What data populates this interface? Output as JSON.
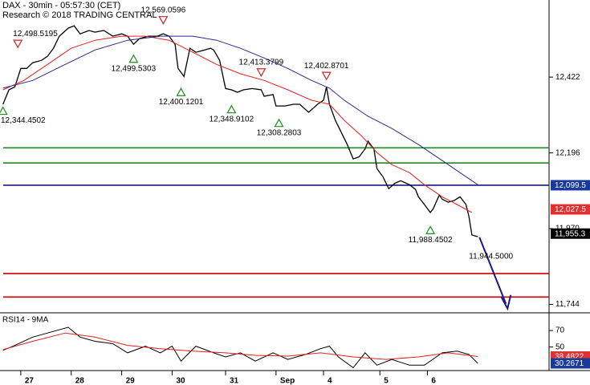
{
  "chart_data": [
    {
      "type": "line",
      "title": "DAX - 30min - 05:57:30 (CET)",
      "subtitle": "Research © 2018 TRADING CENTRAL",
      "xlim": [
        0,
        185
      ],
      "ylim": [
        11719,
        12652
      ],
      "yticks": [
        {
          "value": 12422,
          "label": "12,422"
        },
        {
          "value": 12196,
          "label": "12,196"
        },
        {
          "value": 11970,
          "label": "11,970"
        },
        {
          "value": 11744,
          "label": "11,744"
        }
      ],
      "series": [
        {
          "color": "#000000",
          "width": 1.3,
          "x": [
            1,
            3,
            5,
            7,
            9,
            11,
            14,
            16,
            18,
            20,
            23,
            25,
            27,
            30,
            32,
            35,
            38,
            41,
            43,
            45,
            47,
            50,
            53,
            55,
            57,
            59,
            60,
            62,
            64,
            66,
            69,
            71,
            72,
            74,
            76,
            78,
            80,
            82,
            85,
            88,
            89,
            92,
            93,
            96,
            99,
            101,
            104,
            107,
            109,
            110,
            111,
            113,
            115,
            117,
            119,
            121,
            123,
            124,
            126,
            127,
            129,
            131,
            133,
            135,
            138,
            140,
            141,
            143,
            145,
            146,
            148,
            149,
            151,
            153,
            155,
            157,
            158,
            159,
            161
          ],
          "values": [
            12341,
            12384,
            12393,
            12448,
            12448,
            12465,
            12472,
            12484,
            12508,
            12544,
            12568,
            12575,
            12551,
            12561,
            12556,
            12561,
            12544,
            12551,
            12544,
            12520,
            12537,
            12544,
            12544,
            12551,
            12544,
            12520,
            12448,
            12424,
            12508,
            12496,
            12503,
            12508,
            12503,
            12472,
            12388,
            12384,
            12377,
            12384,
            12388,
            12384,
            12365,
            12370,
            12336,
            12336,
            12341,
            12341,
            12317,
            12341,
            12353,
            12393,
            12341,
            12293,
            12257,
            12221,
            12178,
            12184,
            12208,
            12231,
            12207,
            12149,
            12125,
            12089,
            12105,
            12113,
            12101,
            12087,
            12065,
            12042,
            12018,
            12030,
            12070,
            12058,
            12049,
            12054,
            12065,
            12042,
            12006,
            11951,
            11946
          ]
        },
        {
          "color": "#e02020",
          "width": 1,
          "x": [
            1,
            8,
            16,
            24,
            32,
            41,
            49,
            57,
            65,
            73,
            81,
            89,
            97,
            105,
            111,
            116,
            122,
            127,
            132,
            138,
            143,
            149,
            154,
            159
          ],
          "values": [
            12384,
            12412,
            12460,
            12508,
            12532,
            12544,
            12544,
            12532,
            12496,
            12460,
            12432,
            12412,
            12384,
            12353,
            12341,
            12293,
            12245,
            12197,
            12161,
            12137,
            12101,
            12065,
            12042,
            12018
          ]
        },
        {
          "color": "#2a2a8a",
          "width": 1,
          "x": [
            1,
            11,
            22,
            32,
            43,
            54,
            65,
            73,
            81,
            89,
            97,
            105,
            111,
            116,
            124,
            132,
            141,
            149,
            155,
            161
          ],
          "values": [
            12389,
            12412,
            12460,
            12503,
            12532,
            12544,
            12544,
            12532,
            12508,
            12479,
            12448,
            12412,
            12389,
            12353,
            12305,
            12269,
            12221,
            12173,
            12137,
            12101
          ]
        }
      ],
      "levels": [
        {
          "value": 12211,
          "color": "#1e8c1e"
        },
        {
          "value": 12166,
          "color": "#1e8c1e"
        },
        {
          "value": 12099.5,
          "color": "#1a1a80"
        },
        {
          "value": 11836,
          "color": "#cc0000"
        },
        {
          "value": 11766,
          "color": "#cc0000"
        }
      ],
      "price_tags": [
        {
          "value": 12099.5,
          "label": "12,099.5",
          "color": "#1a3a9a"
        },
        {
          "value": 12027.5,
          "label": "12,027.5",
          "color": "#e03030"
        },
        {
          "value": 11955.3,
          "label": "11,955.3",
          "color": "#000000"
        }
      ],
      "annotations": [
        {
          "kind": "high",
          "x": 6,
          "value": 12498.5195,
          "label": "12,498.5195"
        },
        {
          "kind": "high",
          "x": 55,
          "value": 12569.0596,
          "label": "12,569.0596"
        },
        {
          "kind": "high",
          "x": 88,
          "value": 12413.3799,
          "label": "12,413.3799"
        },
        {
          "kind": "high",
          "x": 110,
          "value": 12402.8701,
          "label": "12,402.8701"
        },
        {
          "kind": "low",
          "x": 1,
          "value": 12344.4502,
          "label": "12,344.4502"
        },
        {
          "kind": "low",
          "x": 45,
          "value": 12499.5303,
          "label": "12,499.5303"
        },
        {
          "kind": "low",
          "x": 61,
          "value": 12400.1201,
          "label": "12,400.1201"
        },
        {
          "kind": "low",
          "x": 78,
          "value": 12348.9102,
          "label": "12,348.9102"
        },
        {
          "kind": "low",
          "x": 94,
          "value": 12308.2803,
          "label": "12,308.2803"
        },
        {
          "kind": "low",
          "x": 145,
          "value": 11988.4502,
          "label": "11,988.4502"
        },
        {
          "kind": "target",
          "x": 161,
          "value": 11944.5,
          "label": "11,944.5000"
        }
      ]
    },
    {
      "type": "line",
      "title": "RSI14 - 9MA",
      "xlim": [
        0,
        185
      ],
      "ylim": [
        21.5,
        89.5
      ],
      "yticks": [
        70,
        50
      ],
      "xticks": [
        {
          "value": 7,
          "label": "27"
        },
        {
          "value": 24,
          "label": "28"
        },
        {
          "value": 41,
          "label": "29"
        },
        {
          "value": 58,
          "label": "30"
        },
        {
          "value": 76,
          "label": "31"
        },
        {
          "value": 93,
          "label": "Sep"
        },
        {
          "value": 109,
          "label": "4"
        },
        {
          "value": 128,
          "label": "5"
        },
        {
          "value": 144,
          "label": "6"
        }
      ],
      "series": [
        {
          "color": "#000000",
          "width": 1,
          "x": [
            1,
            5,
            11,
            16,
            23,
            27,
            32,
            38,
            43,
            49,
            54,
            58,
            61,
            66,
            72,
            76,
            81,
            86,
            92,
            97,
            103,
            108,
            111,
            114,
            119,
            123,
            127,
            132,
            138,
            143,
            149,
            154,
            158,
            161
          ],
          "values": [
            46,
            52,
            62,
            67,
            74,
            62,
            57,
            54,
            43,
            51,
            43,
            51,
            33,
            51,
            43,
            38,
            43,
            33,
            43,
            35,
            41,
            48,
            51,
            38,
            25,
            43,
            28,
            35,
            28,
            28,
            43,
            45,
            41,
            30.2671
          ]
        },
        {
          "color": "#e02020",
          "width": 1,
          "x": [
            1,
            11,
            22,
            32,
            43,
            54,
            65,
            76,
            86,
            97,
            108,
            119,
            130,
            141,
            151,
            161
          ],
          "values": [
            47,
            57,
            67,
            62,
            52,
            48,
            45,
            43,
            40,
            39,
            43,
            38,
            35,
            38,
            43,
            38.4822
          ]
        }
      ],
      "price_tags": [
        {
          "value": 38.4822,
          "label": "38.4822",
          "color": "#e03030"
        },
        {
          "value": 30.2671,
          "label": "30.2671",
          "color": "#1a3a9a"
        }
      ]
    }
  ]
}
